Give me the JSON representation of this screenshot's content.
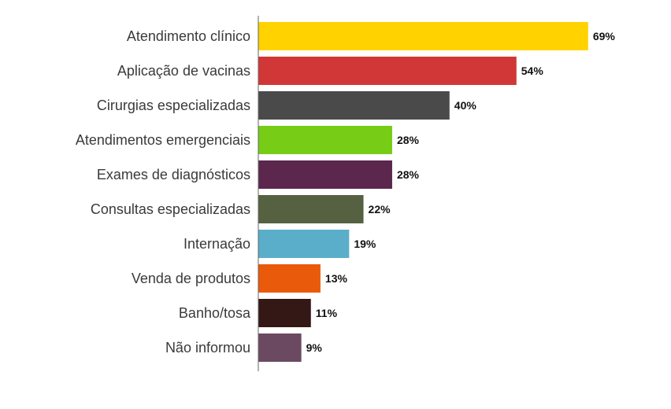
{
  "chart_data": {
    "type": "bar",
    "orientation": "horizontal",
    "title": "",
    "xlabel": "",
    "ylabel": "",
    "xlim": [
      0,
      100
    ],
    "grid": false,
    "legend": "none",
    "value_suffix": "%",
    "categories": [
      "Atendimento clínico",
      "Aplicação de vacinas",
      "Cirurgias especializadas",
      "Atendimentos emergenciais",
      "Exames de diagnósticos",
      "Consultas especializadas",
      "Internação",
      "Venda de produtos",
      "Banho/tosa",
      "Não informou"
    ],
    "values": [
      69,
      54,
      40,
      28,
      28,
      22,
      19,
      13,
      11,
      9
    ],
    "value_labels": [
      "69%",
      "54%",
      "40%",
      "28%",
      "28%",
      "22%",
      "19%",
      "13%",
      "11%",
      "9%"
    ],
    "colors": [
      "#ffd200",
      "#d13737",
      "#4a4a4a",
      "#77cc16",
      "#5c274c",
      "#566142",
      "#5aaec9",
      "#ea5a0b",
      "#341816",
      "#6b4a61"
    ],
    "axis_color": "#666666"
  }
}
